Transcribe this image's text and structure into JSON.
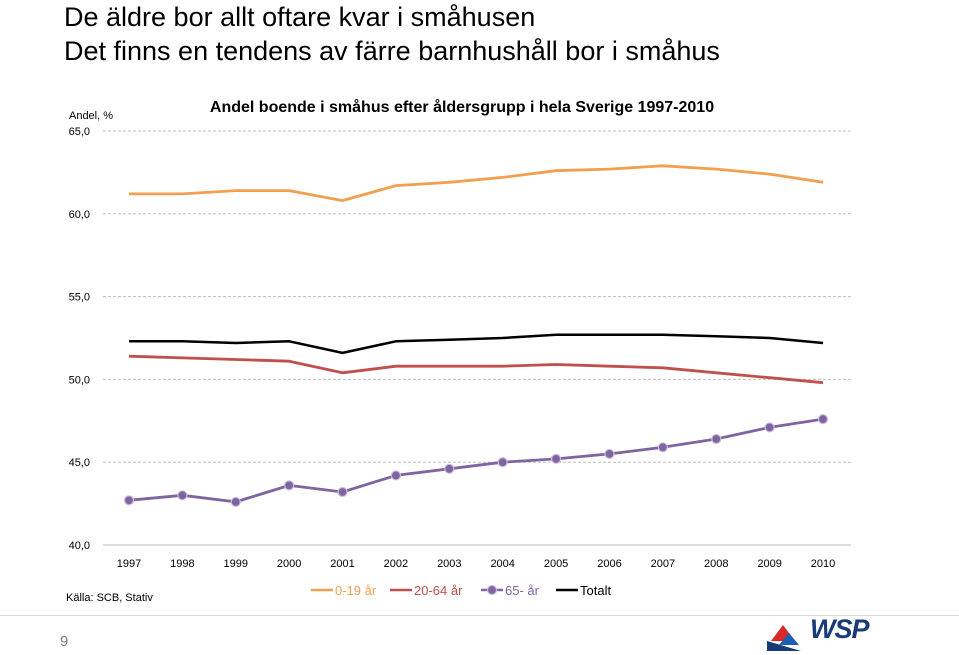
{
  "slide": {
    "title_line1": "De äldre bor allt oftare kvar i småhusen",
    "title_line2": "Det finns en tendens av färre barnhushåll bor i småhus",
    "source": "Källa: SCB, Stativ",
    "page_number": "9",
    "logo_text": "WSP"
  },
  "chart_data": {
    "type": "line",
    "title": "Andel boende i småhus efter åldersgrupp i hela Sverige 1997-2010",
    "ylabel": "Andel, %",
    "xlabel": "",
    "categories": [
      "1997",
      "1998",
      "1999",
      "2000",
      "2001",
      "2002",
      "2003",
      "2004",
      "2005",
      "2006",
      "2007",
      "2008",
      "2009",
      "2010"
    ],
    "ylim": [
      40,
      65
    ],
    "yticks": [
      "40,0",
      "45,0",
      "50,0",
      "55,0",
      "60,0",
      "65,0"
    ],
    "ytick_values": [
      40,
      45,
      50,
      55,
      60,
      65
    ],
    "grid": true,
    "legend": "bottom",
    "series": [
      {
        "name": "0-19 år",
        "color": "#f0a050",
        "marker": false,
        "values": [
          61.2,
          61.2,
          61.4,
          61.4,
          60.8,
          61.7,
          61.9,
          62.2,
          62.6,
          62.7,
          62.9,
          62.7,
          62.4,
          61.9
        ]
      },
      {
        "name": "20-64 år",
        "color": "#c0504d",
        "marker": false,
        "values": [
          51.4,
          51.3,
          51.2,
          51.1,
          50.4,
          50.8,
          50.8,
          50.8,
          50.9,
          50.8,
          50.7,
          50.4,
          50.1,
          49.8
        ]
      },
      {
        "name": "65- år",
        "color": "#8064a2",
        "marker": true,
        "values": [
          42.7,
          43.0,
          42.6,
          43.6,
          43.2,
          44.2,
          44.6,
          45.0,
          45.2,
          45.5,
          45.9,
          46.4,
          47.1,
          47.6
        ]
      },
      {
        "name": "Totalt",
        "color": "#000000",
        "marker": false,
        "values": [
          52.3,
          52.3,
          52.2,
          52.3,
          51.6,
          52.3,
          52.4,
          52.5,
          52.7,
          52.7,
          52.7,
          52.6,
          52.5,
          52.2
        ]
      }
    ]
  }
}
